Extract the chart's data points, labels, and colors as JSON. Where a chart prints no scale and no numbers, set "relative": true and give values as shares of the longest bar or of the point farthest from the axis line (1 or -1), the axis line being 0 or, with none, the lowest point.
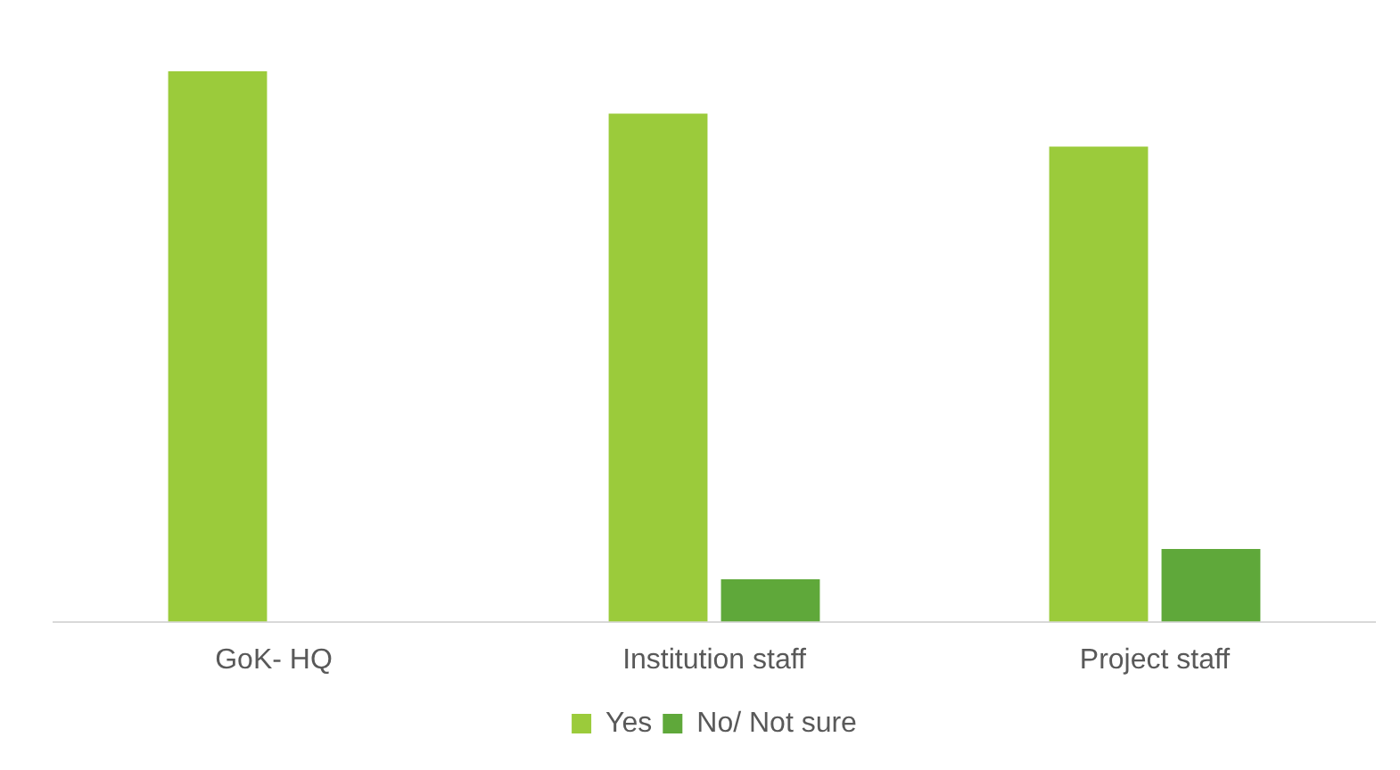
{
  "chart_data": {
    "type": "bar",
    "relative": true,
    "categories": [
      "GoK- HQ",
      "Institution staff",
      "Project staff"
    ],
    "series": [
      {
        "name": "Yes",
        "color": "#9bcb3b",
        "values": [
          1,
          0.923,
          0.863
        ]
      },
      {
        "name": "No/ Not sure",
        "color": "#5fa83a",
        "values": [
          0,
          0.077,
          0.132
        ]
      }
    ],
    "grid": false,
    "legend": "bottom"
  }
}
